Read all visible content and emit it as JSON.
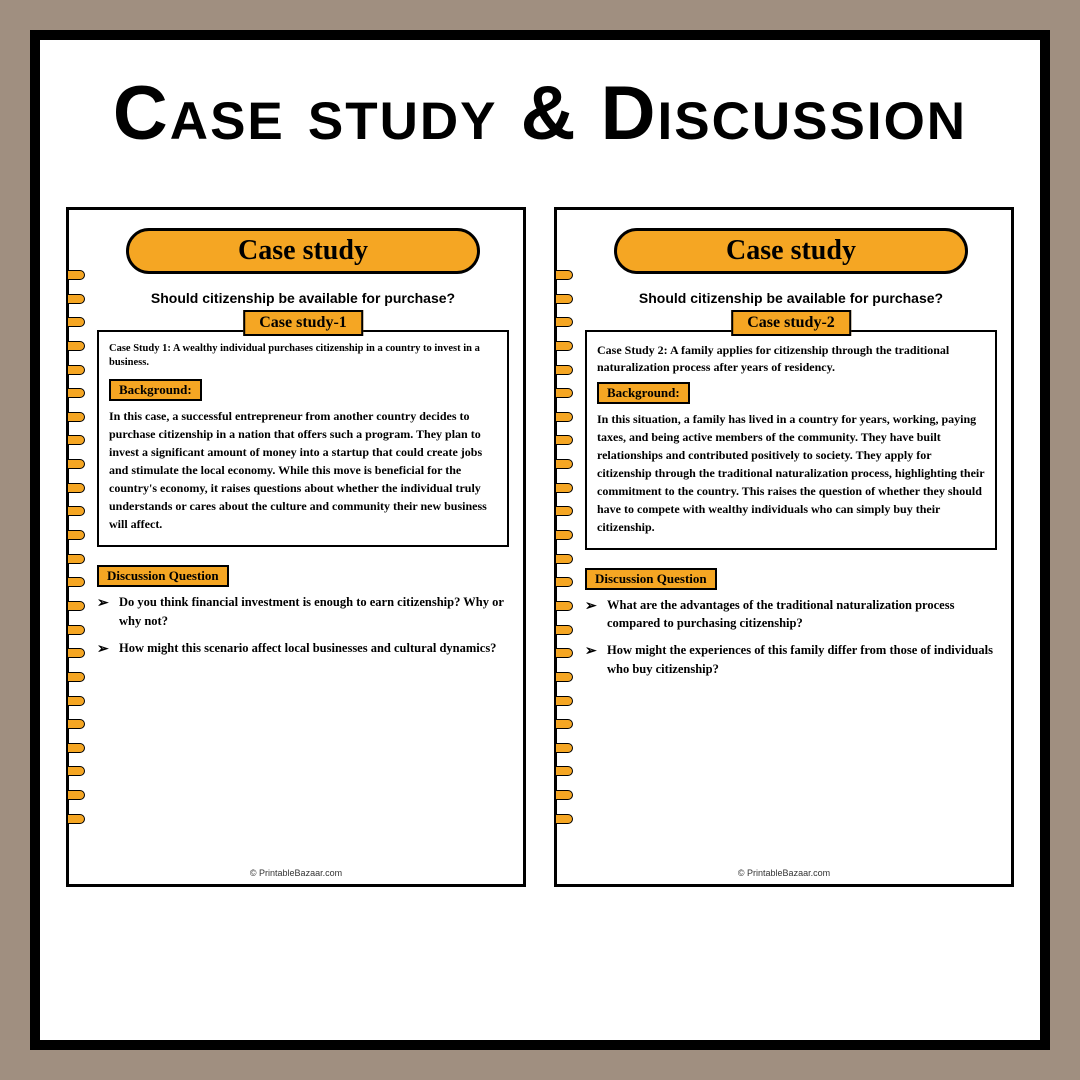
{
  "title": "Case study & Discussion",
  "colors": {
    "outer_bg": "#a08f80",
    "panel_bg": "#ffffff",
    "border": "#000000",
    "accent": "#f5a623"
  },
  "pages": [
    {
      "pill": "Case study",
      "subtitle": "Should citizenship be available for purchase?",
      "tab": "Case study-1",
      "intro": "Case Study 1: A wealthy individual purchases citizenship in a country to invest in a business.",
      "bg_label": "Background:",
      "body": "In this case, a successful entrepreneur from another country decides to purchase citizenship in a nation that offers such a program. They plan to invest a significant amount of money into a startup that could create jobs and stimulate the local economy. While this move is beneficial for the country's economy, it raises questions about whether the individual truly understands or cares about the culture and community their new business will affect.",
      "dq_label": "Discussion Question",
      "q1": "Do you think financial investment is enough to earn citizenship? Why or why not?",
      "q2": "How might this scenario affect local businesses and cultural dynamics?",
      "footer": "© PrintableBazaar.com"
    },
    {
      "pill": "Case study",
      "subtitle": "Should citizenship be available for purchase?",
      "tab": "Case study-2",
      "intro": "Case Study 2: A family applies for citizenship through the traditional naturalization process after years of residency.",
      "bg_label": "Background:",
      "body": "In this situation, a family has lived in a country for years, working, paying taxes, and being active members of the community. They have built relationships and contributed positively to society. They apply for citizenship through the traditional naturalization process, highlighting their commitment to the country. This raises the question of whether they should have to compete with wealthy individuals who can simply buy their citizenship.",
      "dq_label": "Discussion Question",
      "q1": "What are the advantages of the traditional naturalization process compared to purchasing citizenship?",
      "q2": "How might the experiences of this family differ from those of individuals who buy citizenship?",
      "footer": "© PrintableBazaar.com"
    }
  ]
}
